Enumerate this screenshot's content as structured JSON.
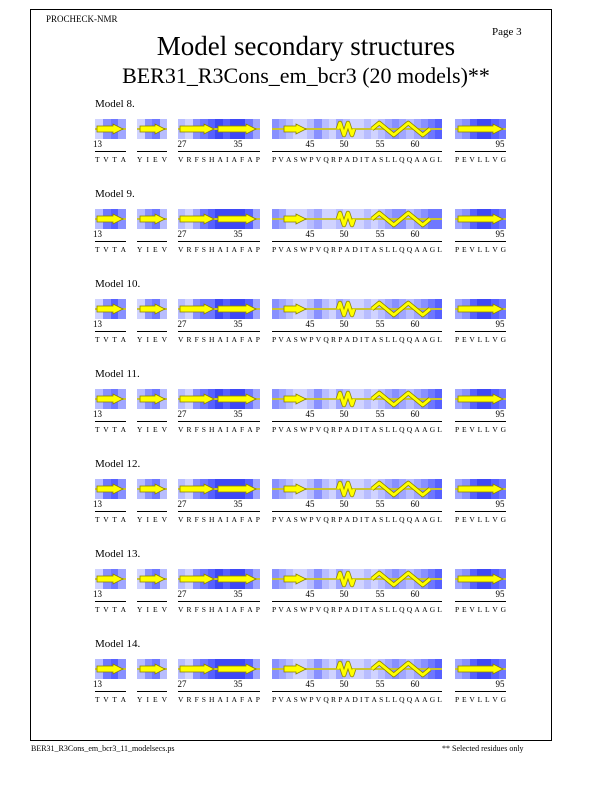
{
  "header": {
    "program": "PROCHECK-NMR",
    "page": "Page  3",
    "title": "Model secondary structures",
    "subtitle": "BER31_R3Cons_em_bcr3 (20 models)**"
  },
  "footer": {
    "filename": "BER31_R3Cons_em_bcr3_11_modelsecs.ps",
    "note": "** Selected residues only"
  },
  "colors": {
    "strand": "#ffff00",
    "helix": "#ffff00",
    "outline": "#8a8000",
    "accent_blue": "#4040ff"
  },
  "numbering": [
    "13",
    "27",
    "35",
    "45",
    "50",
    "55",
    "60",
    "95"
  ],
  "segments": [
    {
      "residues": [
        "T",
        "V",
        "T",
        "A"
      ]
    },
    {
      "residues": [
        "Y",
        "I",
        "E",
        "V"
      ]
    },
    {
      "residues": [
        "V",
        "R",
        "F",
        "S",
        "H",
        "A",
        "I",
        "A",
        "F",
        "A",
        "P"
      ]
    },
    {
      "residues": [
        "P",
        "V",
        "A",
        "S",
        "W",
        "P",
        "V",
        "Q",
        "R",
        "P",
        "A",
        "D",
        "I",
        "T",
        "A",
        "S",
        "L",
        "L",
        "Q",
        "Q",
        "A",
        "A",
        "G",
        "L"
      ]
    },
    {
      "residues": [
        "P",
        "E",
        "V",
        "L",
        "L",
        "V",
        "G"
      ]
    }
  ],
  "models": [
    {
      "label": "Model  8.",
      "shades": [
        [
          2,
          5,
          6,
          4
        ],
        [
          2,
          5,
          6,
          3
        ],
        [
          3,
          2,
          5,
          6,
          7,
          8,
          7,
          8,
          8,
          6,
          4
        ],
        [
          5,
          4,
          3,
          2,
          2,
          3,
          5,
          3,
          2,
          4,
          3,
          2,
          2,
          3,
          2,
          3,
          4,
          5,
          4,
          3,
          4,
          5,
          6,
          7
        ],
        [
          4,
          5,
          7,
          8,
          8,
          7,
          6
        ]
      ]
    },
    {
      "label": "Model  9.",
      "shades": [
        [
          3,
          6,
          7,
          5
        ],
        [
          3,
          5,
          6,
          3
        ],
        [
          3,
          2,
          4,
          6,
          7,
          8,
          8,
          8,
          8,
          7,
          4
        ],
        [
          5,
          4,
          2,
          2,
          2,
          3,
          4,
          2,
          2,
          3,
          2,
          2,
          2,
          3,
          2,
          3,
          4,
          5,
          5,
          3,
          4,
          5,
          6,
          6
        ],
        [
          4,
          5,
          7,
          8,
          8,
          7,
          6
        ]
      ]
    },
    {
      "label": "Model 10.",
      "shades": [
        [
          2,
          5,
          7,
          5
        ],
        [
          2,
          5,
          6,
          3
        ],
        [
          3,
          2,
          5,
          6,
          6,
          8,
          7,
          8,
          8,
          7,
          4
        ],
        [
          5,
          4,
          3,
          2,
          2,
          3,
          5,
          3,
          2,
          4,
          3,
          2,
          2,
          3,
          2,
          3,
          4,
          5,
          4,
          3,
          4,
          5,
          6,
          7
        ],
        [
          4,
          5,
          7,
          8,
          8,
          7,
          6
        ]
      ]
    },
    {
      "label": "Model 11.",
      "shades": [
        [
          3,
          5,
          6,
          4
        ],
        [
          3,
          5,
          6,
          3
        ],
        [
          3,
          2,
          5,
          6,
          7,
          8,
          7,
          8,
          8,
          6,
          4
        ],
        [
          5,
          4,
          3,
          2,
          2,
          3,
          5,
          3,
          2,
          4,
          3,
          2,
          2,
          3,
          2,
          3,
          4,
          5,
          4,
          3,
          4,
          5,
          6,
          7
        ],
        [
          4,
          5,
          7,
          8,
          8,
          7,
          6
        ]
      ]
    },
    {
      "label": "Model 12.",
      "shades": [
        [
          3,
          6,
          7,
          5
        ],
        [
          3,
          5,
          6,
          3
        ],
        [
          3,
          2,
          5,
          6,
          7,
          8,
          8,
          8,
          8,
          7,
          4
        ],
        [
          5,
          4,
          3,
          2,
          2,
          3,
          5,
          3,
          2,
          4,
          3,
          2,
          2,
          3,
          2,
          3,
          4,
          5,
          4,
          3,
          4,
          5,
          6,
          7
        ],
        [
          4,
          5,
          7,
          8,
          8,
          7,
          6
        ]
      ]
    },
    {
      "label": "Model 13.",
      "shades": [
        [
          2,
          5,
          6,
          4
        ],
        [
          2,
          5,
          6,
          3
        ],
        [
          3,
          2,
          5,
          6,
          7,
          8,
          7,
          8,
          8,
          6,
          4
        ],
        [
          5,
          4,
          3,
          2,
          2,
          3,
          5,
          3,
          2,
          4,
          3,
          2,
          2,
          3,
          2,
          3,
          4,
          5,
          4,
          3,
          4,
          5,
          6,
          7
        ],
        [
          4,
          5,
          7,
          8,
          8,
          7,
          6
        ]
      ]
    },
    {
      "label": "Model 14.",
      "shades": [
        [
          3,
          6,
          7,
          5
        ],
        [
          3,
          5,
          6,
          3
        ],
        [
          3,
          2,
          5,
          6,
          7,
          8,
          8,
          8,
          8,
          7,
          4
        ],
        [
          5,
          4,
          3,
          2,
          2,
          3,
          5,
          3,
          2,
          4,
          3,
          2,
          2,
          3,
          2,
          3,
          4,
          5,
          4,
          3,
          4,
          5,
          6,
          7
        ],
        [
          4,
          5,
          7,
          8,
          8,
          7,
          6
        ]
      ]
    }
  ]
}
